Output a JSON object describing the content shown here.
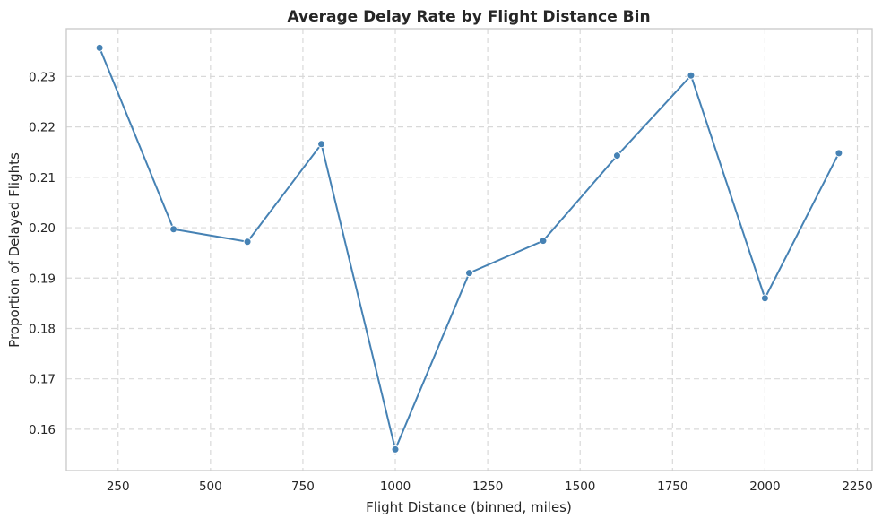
{
  "chart_data": {
    "type": "line",
    "title": "Average Delay Rate by Flight Distance Bin",
    "xlabel": "Flight Distance (binned, miles)",
    "ylabel": "Proportion of Delayed Flights",
    "xlim": [
      110,
      2290
    ],
    "ylim": [
      0.1518,
      0.2395
    ],
    "xticks": [
      250,
      500,
      750,
      1000,
      1250,
      1500,
      1750,
      2000,
      2250
    ],
    "yticks": [
      0.16,
      0.17,
      0.18,
      0.19,
      0.2,
      0.21,
      0.22,
      0.23
    ],
    "ytick_labels": [
      "0.16",
      "0.17",
      "0.18",
      "0.19",
      "0.20",
      "0.21",
      "0.22",
      "0.23"
    ],
    "grid": true,
    "series": [
      {
        "color": "#4682b4",
        "marker": "circle",
        "x": [
          200,
          400,
          600,
          800,
          1000,
          1200,
          1400,
          1600,
          1800,
          2000,
          2200
        ],
        "values": [
          0.2357,
          0.1997,
          0.1972,
          0.2166,
          0.156,
          0.191,
          0.1974,
          0.2143,
          0.2302,
          0.186,
          0.2148
        ]
      }
    ]
  }
}
